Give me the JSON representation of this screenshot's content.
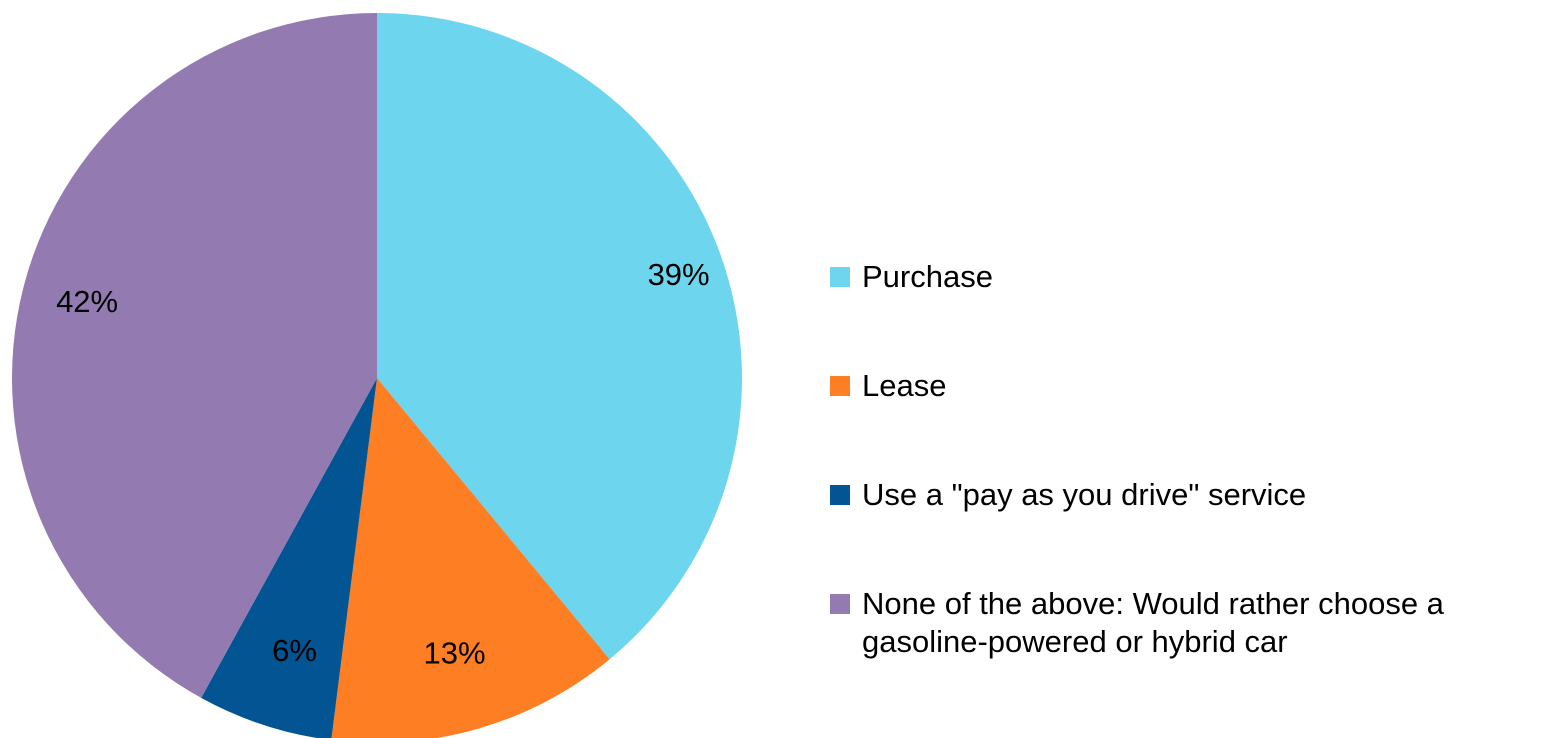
{
  "chart_data": {
    "type": "pie",
    "title": "",
    "start_angle_deg": 0,
    "direction": "clockwise",
    "slices": [
      {
        "label": "Purchase",
        "value": 39,
        "value_label": "39%",
        "color": "#6DD5EE"
      },
      {
        "label": "Lease",
        "value": 13,
        "value_label": "13%",
        "color": "#FD7E23"
      },
      {
        "label": "Use a \"pay as you drive\" service",
        "value": 6,
        "value_label": "6%",
        "color": "#025592"
      },
      {
        "label": "None of the above: Would rather choose a gasoline-powered or hybrid car",
        "value": 42,
        "value_label": "42%",
        "color": "#937BB1"
      }
    ],
    "legend": {
      "placement": "right",
      "entries": [
        "Purchase",
        "Lease",
        "Use a \"pay as you drive\" service",
        "None of the above: Would rather choose a gasoline-powered or hybrid car"
      ]
    }
  }
}
